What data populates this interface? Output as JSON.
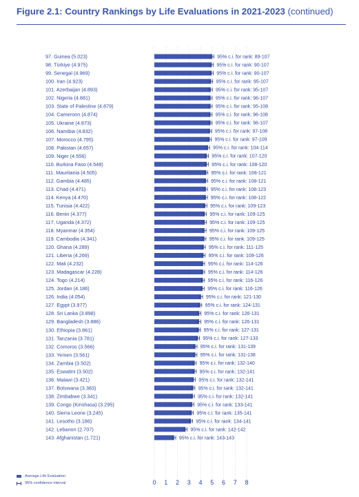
{
  "header": {
    "title_bold": "Figure 2.1: Country Rankings by Life Evaluations in 2021-2023",
    "title_light": " (continued)"
  },
  "legend": {
    "bar_label": "Average Life Evaluation",
    "ci_label": "95% confidence interval"
  },
  "colors": {
    "accent": "#3a56a6",
    "bar": "#3f56ae",
    "ci": "#2f3f7c"
  },
  "chart_data": {
    "type": "bar",
    "orientation": "horizontal",
    "title": "Figure 2.1: Country Rankings by Life Evaluations in 2021-2023 (continued)",
    "xlim": [
      0,
      8
    ],
    "xticks": [
      0,
      1,
      2,
      3,
      4,
      5,
      6,
      7,
      8
    ],
    "grid": true,
    "legend_position": "bottom-left",
    "rows": [
      {
        "rank": 97,
        "country": "Guinea",
        "value": 5.023,
        "ci_rank": "95% c.i. for rank: 89-107"
      },
      {
        "rank": 98,
        "country": "Türkiye",
        "value": 4.975,
        "ci_rank": "95% c.i. for rank: 90-107"
      },
      {
        "rank": 99,
        "country": "Senegal",
        "value": 4.969,
        "ci_rank": "95% c.i. for rank: 90-107"
      },
      {
        "rank": 100,
        "country": "Iran",
        "value": 4.923,
        "ci_rank": "95% c.i. for rank: 95-107"
      },
      {
        "rank": 101,
        "country": "Azerbaijan",
        "value": 4.893,
        "ci_rank": "95% c.i. for rank: 95-107"
      },
      {
        "rank": 102,
        "country": "Nigeria",
        "value": 4.881,
        "ci_rank": "95% c.i. for rank: 96-107"
      },
      {
        "rank": 103,
        "country": "State of Palestine",
        "value": 4.879,
        "ci_rank": "95% c.i. for rank: 95-108"
      },
      {
        "rank": 104,
        "country": "Cameroon",
        "value": 4.874,
        "ci_rank": "95% c.i. for rank: 96-108"
      },
      {
        "rank": 105,
        "country": "Ukraine",
        "value": 4.873,
        "ci_rank": "95% c.i. for rank: 96-107"
      },
      {
        "rank": 106,
        "country": "Namibia",
        "value": 4.832,
        "ci_rank": "95% c.i. for rank: 97-108"
      },
      {
        "rank": 107,
        "country": "Morocco",
        "value": 4.795,
        "ci_rank": "95% c.i. for rank: 97-109"
      },
      {
        "rank": 108,
        "country": "Pakistan",
        "value": 4.657,
        "ci_rank": "95% c.i. for rank: 104-114"
      },
      {
        "rank": 109,
        "country": "Niger",
        "value": 4.556,
        "ci_rank": "95% c.i. for rank: 107-120"
      },
      {
        "rank": 110,
        "country": "Burkina Faso",
        "value": 4.548,
        "ci_rank": "95% c.i. for rank: 108-120"
      },
      {
        "rank": 111,
        "country": "Mauritania",
        "value": 4.505,
        "ci_rank": "95% c.i. for rank: 108-121"
      },
      {
        "rank": 112,
        "country": "Gambia",
        "value": 4.485,
        "ci_rank": "95% c.i. for rank: 108-121"
      },
      {
        "rank": 113,
        "country": "Chad",
        "value": 4.471,
        "ci_rank": "95% c.i. for rank: 108-123"
      },
      {
        "rank": 114,
        "country": "Kenya",
        "value": 4.47,
        "ci_rank": "95% c.i. for rank: 108-122"
      },
      {
        "rank": 115,
        "country": "Tunisia",
        "value": 4.422,
        "ci_rank": "95% c.i. for rank: 109-123"
      },
      {
        "rank": 116,
        "country": "Benin",
        "value": 4.377,
        "ci_rank": "95% c.i. for rank: 109-125"
      },
      {
        "rank": 117,
        "country": "Uganda",
        "value": 4.372,
        "ci_rank": "95% c.i. for rank: 109-125"
      },
      {
        "rank": 118,
        "country": "Myanmar",
        "value": 4.354,
        "ci_rank": "95% c.i. for rank: 109-125"
      },
      {
        "rank": 119,
        "country": "Cambodia",
        "value": 4.341,
        "ci_rank": "95% c.i. for rank: 109-125"
      },
      {
        "rank": 120,
        "country": "Ghana",
        "value": 4.289,
        "ci_rank": "95% c.i. for rank: 111-125"
      },
      {
        "rank": 121,
        "country": "Liberia",
        "value": 4.269,
        "ci_rank": "95% c.i. for rank: 109-126"
      },
      {
        "rank": 122,
        "country": "Mali",
        "value": 4.232,
        "ci_rank": "95% c.i. for rank: 114-126"
      },
      {
        "rank": 123,
        "country": "Madagascar",
        "value": 4.228,
        "ci_rank": "95% c.i. for rank: 114-126"
      },
      {
        "rank": 124,
        "country": "Togo",
        "value": 4.214,
        "ci_rank": "95% c.i. for rank: 116-126"
      },
      {
        "rank": 125,
        "country": "Jordan",
        "value": 4.186,
        "ci_rank": "95% c.i. for rank: 116-126"
      },
      {
        "rank": 126,
        "country": "India",
        "value": 4.054,
        "ci_rank": "95% c.i. for rank: 121-130"
      },
      {
        "rank": 127,
        "country": "Egypt",
        "value": 3.977,
        "ci_rank": "95% c.i. for rank: 124-131"
      },
      {
        "rank": 128,
        "country": "Sri Lanka",
        "value": 3.898,
        "ci_rank": "95% c.i. for rank: 126-131"
      },
      {
        "rank": 129,
        "country": "Bangladesh",
        "value": 3.886,
        "ci_rank": "95% c.i. for rank: 126-131"
      },
      {
        "rank": 130,
        "country": "Ethiopia",
        "value": 3.861,
        "ci_rank": "95% c.i. for rank: 127-131"
      },
      {
        "rank": 131,
        "country": "Tanzania",
        "value": 3.781,
        "ci_rank": "95% c.i. for rank: 127-133"
      },
      {
        "rank": 132,
        "country": "Comoros",
        "value": 3.566,
        "ci_rank": "95% c.i. for rank: 131-139"
      },
      {
        "rank": 133,
        "country": "Yemen",
        "value": 3.561,
        "ci_rank": "95% c.i. for rank: 131-138"
      },
      {
        "rank": 134,
        "country": "Zambia",
        "value": 3.502,
        "ci_rank": "95% c.i. for rank: 132-140"
      },
      {
        "rank": 135,
        "country": "Eswatini",
        "value": 3.502,
        "ci_rank": "95% c.i. for rank: 132-141"
      },
      {
        "rank": 136,
        "country": "Malawi",
        "value": 3.421,
        "ci_rank": "95% c.i. for rank: 132-141"
      },
      {
        "rank": 137,
        "country": "Botswana",
        "value": 3.383,
        "ci_rank": "95% c.i. for rank: 132-141"
      },
      {
        "rank": 138,
        "country": "Zimbabwe",
        "value": 3.341,
        "ci_rank": "95% c.i. for rank: 132-141"
      },
      {
        "rank": 139,
        "country": "Congo  (Kinshasa)",
        "value": 3.295,
        "ci_rank": "95% c.i. for rank: 133-141"
      },
      {
        "rank": 140,
        "country": "Sierra Leone",
        "value": 3.245,
        "ci_rank": "95% c.i. for rank: 135-141"
      },
      {
        "rank": 141,
        "country": "Lesotho",
        "value": 3.186,
        "ci_rank": "95% c.i. for rank: 134-141"
      },
      {
        "rank": 142,
        "country": "Lebanon",
        "value": 2.707,
        "ci_rank": "95% c.i. for rank: 142-142"
      },
      {
        "rank": 143,
        "country": "Afghanistan",
        "value": 1.721,
        "ci_rank": "95% c.i. for rank: 143-143"
      }
    ]
  }
}
